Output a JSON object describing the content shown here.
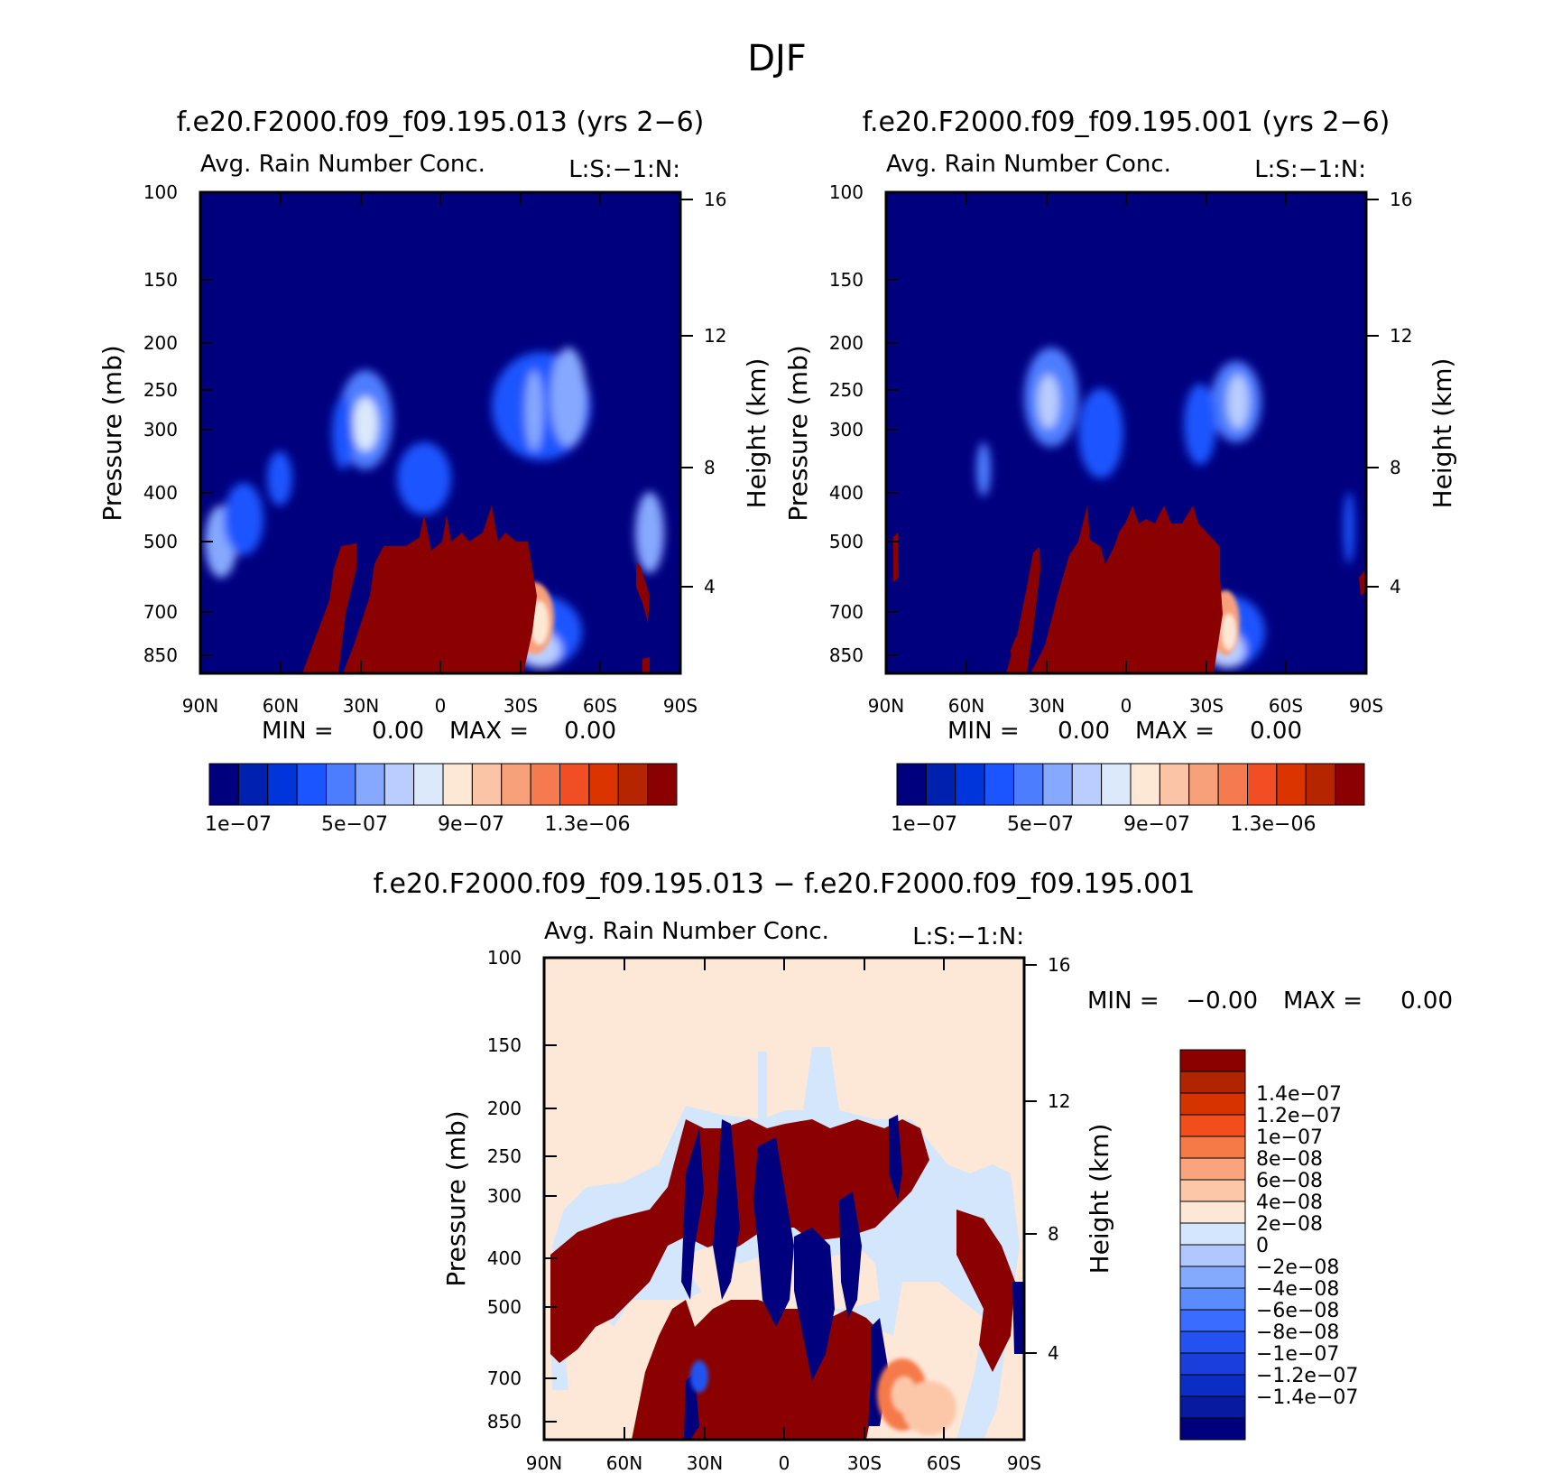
{
  "figure_title": "DJF",
  "colors": {
    "positive_scale": [
      "#00007f",
      "#0020b0",
      "#0035dc",
      "#1a55ff",
      "#4d7dff",
      "#86a8ff",
      "#b9cdff",
      "#dbe9fb",
      "#fde8d6",
      "#fbc4a6",
      "#f8a07a",
      "#f57a50",
      "#f24e24",
      "#db3400",
      "#b52600",
      "#8b0000"
    ],
    "diff_scale": [
      "#00007f",
      "#081aa0",
      "#0a2ec4",
      "#1a3edc",
      "#2452f0",
      "#3a6cff",
      "#5a8cff",
      "#84aaff",
      "#b0c8ff",
      "#d4e6fb",
      "#fde8d8",
      "#fcc7a8",
      "#f9a47c",
      "#f67a48",
      "#f24e1c",
      "#d53400",
      "#b02400",
      "#8b0000"
    ]
  },
  "chart_data": [
    {
      "type": "heatmap",
      "title": "f.e20.F2000.f09_f09.195.013 (yrs 2−6)",
      "subtitle_left": "Avg. Rain Number Conc.",
      "subtitle_right": "L:S:−1:N:",
      "xlabel": "",
      "ylabel": "Pressure (mb)",
      "ylabel_right": "Height (km)",
      "x_ticks": [
        "90N",
        "60N",
        "30N",
        "0",
        "30S",
        "60S",
        "90S"
      ],
      "y_ticks": [
        "100",
        "150",
        "200",
        "250",
        "300",
        "400",
        "500",
        "700",
        "850"
      ],
      "y_ticks_right": [
        "16",
        "12",
        "8",
        "4"
      ],
      "min_label": "MIN =",
      "min_value": "0.00",
      "max_label": "MAX =",
      "max_value": "0.00",
      "colorbar_labels": [
        "1e−07",
        "5e−07",
        "9e−07",
        "1.3e−06"
      ]
    },
    {
      "type": "heatmap",
      "title": "f.e20.F2000.f09_f09.195.001 (yrs 2−6)",
      "subtitle_left": "Avg. Rain Number Conc.",
      "subtitle_right": "L:S:−1:N:",
      "xlabel": "",
      "ylabel": "Pressure (mb)",
      "ylabel_right": "Height (km)",
      "x_ticks": [
        "90N",
        "60N",
        "30N",
        "0",
        "30S",
        "60S",
        "90S"
      ],
      "y_ticks": [
        "100",
        "150",
        "200",
        "250",
        "300",
        "400",
        "500",
        "700",
        "850"
      ],
      "y_ticks_right": [
        "16",
        "12",
        "8",
        "4"
      ],
      "min_label": "MIN =",
      "min_value": "0.00",
      "max_label": "MAX =",
      "max_value": "0.00",
      "colorbar_labels": [
        "1e−07",
        "5e−07",
        "9e−07",
        "1.3e−06"
      ]
    },
    {
      "type": "heatmap",
      "title": "f.e20.F2000.f09_f09.195.013 − f.e20.F2000.f09_f09.195.001",
      "subtitle_left": "Avg. Rain Number Conc.",
      "subtitle_right": "L:S:−1:N:",
      "xlabel": "",
      "ylabel": "Pressure (mb)",
      "ylabel_right": "Height (km)",
      "x_ticks": [
        "90N",
        "60N",
        "30N",
        "0",
        "30S",
        "60S",
        "90S"
      ],
      "y_ticks": [
        "100",
        "150",
        "200",
        "250",
        "300",
        "400",
        "500",
        "700",
        "850"
      ],
      "y_ticks_right": [
        "16",
        "12",
        "8",
        "4"
      ],
      "min_label": "MIN =",
      "min_value": "−0.00",
      "max_label": "MAX =",
      "max_value": "0.00",
      "colorbar_labels": [
        "1.4e−07",
        "1.2e−07",
        "1e−07",
        "8e−08",
        "6e−08",
        "4e−08",
        "2e−08",
        "0",
        "−2e−08",
        "−4e−08",
        "−6e−08",
        "−8e−08",
        "−1e−07",
        "−1.2e−07",
        "−1.4e−07"
      ]
    }
  ]
}
